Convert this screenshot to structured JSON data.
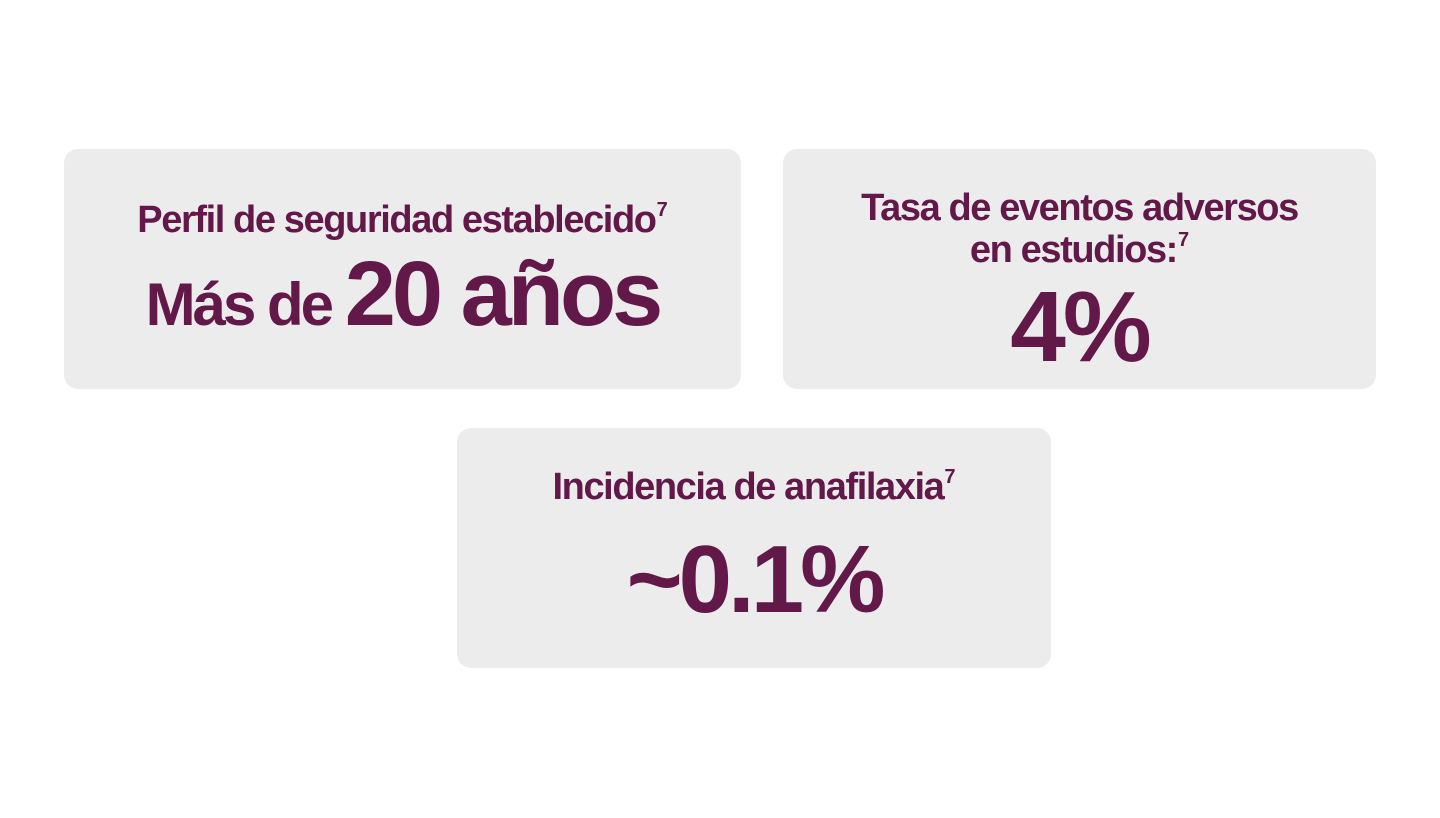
{
  "cards": [
    {
      "label": "Perfil de seguridad establecido",
      "label_sup": "7",
      "value_prefix": "Más de ",
      "value_main": "20 años"
    },
    {
      "label_line1": "Tasa de eventos adversos",
      "label_line2": "en estudios:",
      "label_sup": "7",
      "value": "4%"
    },
    {
      "label": "Incidencia de anafilaxia",
      "label_sup": "7",
      "value": "~0.1%"
    }
  ],
  "colors": {
    "accent": "#621848",
    "card_background": "#ececec",
    "page_background": "#ffffff"
  }
}
